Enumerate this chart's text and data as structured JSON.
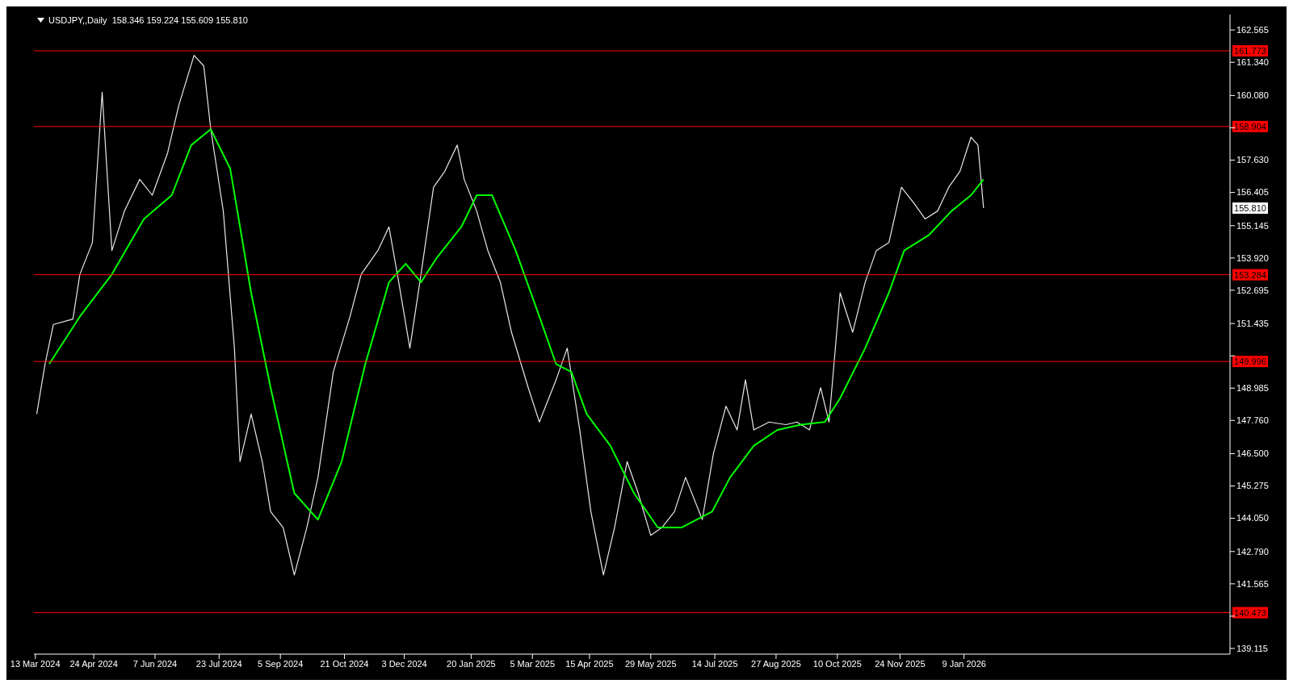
{
  "chart_data": {
    "type": "line",
    "title": "USDJPY,,Daily  158.346 159.224 155.609 155.810",
    "xlim": [
      "2024-03-12",
      "2026-07-19"
    ],
    "xticks": [
      {
        "value": "2024-03-13",
        "label": "13 Mar 2024"
      },
      {
        "value": "2024-04-24",
        "label": "24 Apr 2024"
      },
      {
        "value": "2024-06-07",
        "label": "7 Jun 2024"
      },
      {
        "value": "2024-07-23",
        "label": "23 Jul 2024"
      },
      {
        "value": "2024-09-05",
        "label": "5 Sep 2024"
      },
      {
        "value": "2024-10-21",
        "label": "21 Oct 2024"
      },
      {
        "value": "2024-12-03",
        "label": "3 Dec 2024"
      },
      {
        "value": "2025-01-20",
        "label": "20 Jan 2025"
      },
      {
        "value": "2025-03-05",
        "label": "5 Mar 2025"
      },
      {
        "value": "2025-04-15",
        "label": "15 Apr 2025"
      },
      {
        "value": "2025-05-29",
        "label": "29 May 2025"
      },
      {
        "value": "2025-07-14",
        "label": "14 Jul 2025"
      },
      {
        "value": "2025-08-27",
        "label": "27 Aug 2025"
      },
      {
        "value": "2025-10-10",
        "label": "10 Oct 2025"
      },
      {
        "value": "2025-11-24",
        "label": "24 Nov 2025"
      },
      {
        "value": "2026-01-09",
        "label": "9 Jan 2026"
      }
    ],
    "ylim": [
      138.9,
      163.15
    ],
    "yticks": [
      {
        "value": 139.115,
        "label": "139.115"
      },
      {
        "value": 140.34,
        "label": null
      },
      {
        "value": 141.565,
        "label": "141.565"
      },
      {
        "value": 142.79,
        "label": "142.790"
      },
      {
        "value": 144.05,
        "label": "144.050"
      },
      {
        "value": 145.275,
        "label": "145.275"
      },
      {
        "value": 146.5,
        "label": "146.500"
      },
      {
        "value": 147.76,
        "label": "147.760"
      },
      {
        "value": 148.985,
        "label": "148.985"
      },
      {
        "value": 150.21,
        "label": null
      },
      {
        "value": 151.435,
        "label": "151.435"
      },
      {
        "value": 152.695,
        "label": "152.695"
      },
      {
        "value": 153.92,
        "label": "153.920"
      },
      {
        "value": 155.145,
        "label": "155.145"
      },
      {
        "value": 156.405,
        "label": "156.405"
      },
      {
        "value": 157.63,
        "label": "157.630"
      },
      {
        "value": 158.855,
        "label": null
      },
      {
        "value": 160.08,
        "label": "160.080"
      },
      {
        "value": 161.34,
        "label": "161.340"
      },
      {
        "value": 162.565,
        "label": "162.565"
      }
    ],
    "series": [
      {
        "color": "#e8e8e8",
        "x": [
          "2024-03-14",
          "2024-03-20",
          "2024-03-26",
          "2024-04-09",
          "2024-04-14",
          "2024-04-23",
          "2024-04-30",
          "2024-05-07",
          "2024-05-16",
          "2024-05-27",
          "2024-06-05",
          "2024-06-16",
          "2024-06-24",
          "2024-07-05",
          "2024-07-12",
          "2024-07-17",
          "2024-07-26",
          "2024-08-03",
          "2024-08-07",
          "2024-08-15",
          "2024-08-23",
          "2024-08-29",
          "2024-09-07",
          "2024-09-15",
          "2024-09-24",
          "2024-10-02",
          "2024-10-13",
          "2024-10-25",
          "2024-11-02",
          "2024-11-14",
          "2024-11-22",
          "2024-11-29",
          "2024-12-07",
          "2024-12-15",
          "2024-12-24",
          "2025-01-01",
          "2025-01-10",
          "2025-01-15",
          "2025-01-24",
          "2025-02-01",
          "2025-02-10",
          "2025-02-18",
          "2025-03-02",
          "2025-03-10",
          "2025-03-22",
          "2025-03-30",
          "2025-04-08",
          "2025-04-16",
          "2025-04-25",
          "2025-05-03",
          "2025-05-12",
          "2025-05-20",
          "2025-05-29",
          "2025-06-06",
          "2025-06-15",
          "2025-06-23",
          "2025-07-05",
          "2025-07-13",
          "2025-07-22",
          "2025-07-30",
          "2025-08-05",
          "2025-08-11",
          "2025-08-22",
          "2025-09-03",
          "2025-09-11",
          "2025-09-20",
          "2025-09-28",
          "2025-10-04",
          "2025-10-12",
          "2025-10-21",
          "2025-10-30",
          "2025-11-07",
          "2025-11-16",
          "2025-11-25",
          "2025-12-04",
          "2025-12-12",
          "2025-12-21",
          "2025-12-29",
          "2026-01-06",
          "2026-01-14",
          "2026-01-19",
          "2026-01-23"
        ],
        "values": [
          148.0,
          149.9,
          151.4,
          151.6,
          153.3,
          154.5,
          160.2,
          154.2,
          155.7,
          156.9,
          156.3,
          157.9,
          159.7,
          161.6,
          161.2,
          158.8,
          155.7,
          150.5,
          146.2,
          148.0,
          146.2,
          144.3,
          143.7,
          141.9,
          143.7,
          145.6,
          149.6,
          151.7,
          153.3,
          154.2,
          155.1,
          153.0,
          150.5,
          153.3,
          156.6,
          157.2,
          158.2,
          156.9,
          155.7,
          154.2,
          153.0,
          151.1,
          149.0,
          147.7,
          149.3,
          150.5,
          147.4,
          144.3,
          141.9,
          143.7,
          146.2,
          145.0,
          143.4,
          143.7,
          144.3,
          145.6,
          144.0,
          146.5,
          148.3,
          147.4,
          149.3,
          147.4,
          147.7,
          147.6,
          147.7,
          147.4,
          149.0,
          147.7,
          152.6,
          151.1,
          153.0,
          154.2,
          154.5,
          156.6,
          156.0,
          155.4,
          155.7,
          156.6,
          157.2,
          158.5,
          158.2,
          155.81
        ]
      },
      {
        "color": "#00ff00",
        "x": [
          "2024-03-23",
          "2024-04-14",
          "2024-05-07",
          "2024-05-30",
          "2024-06-19",
          "2024-07-03",
          "2024-07-17",
          "2024-07-31",
          "2024-08-15",
          "2024-08-29",
          "2024-09-15",
          "2024-10-02",
          "2024-10-19",
          "2024-11-05",
          "2024-11-22",
          "2024-12-04",
          "2024-12-15",
          "2024-12-26",
          "2025-01-13",
          "2025-01-24",
          "2025-02-04",
          "2025-02-21",
          "2025-03-10",
          "2025-03-22",
          "2025-04-02",
          "2025-04-13",
          "2025-04-30",
          "2025-05-17",
          "2025-06-03",
          "2025-06-20",
          "2025-07-12",
          "2025-07-25",
          "2025-08-11",
          "2025-08-28",
          "2025-09-14",
          "2025-10-01",
          "2025-10-12",
          "2025-10-30",
          "2025-11-16",
          "2025-11-27",
          "2025-12-15",
          "2025-12-31",
          "2026-01-14",
          "2026-01-23"
        ],
        "values": [
          149.9,
          151.7,
          153.3,
          155.4,
          156.3,
          158.2,
          158.8,
          157.3,
          152.6,
          149.0,
          145.0,
          144.0,
          146.2,
          149.9,
          153.0,
          153.7,
          153.0,
          153.9,
          155.1,
          156.3,
          156.3,
          154.2,
          151.7,
          149.9,
          149.6,
          148.0,
          146.8,
          145.0,
          143.7,
          143.7,
          144.3,
          145.6,
          146.8,
          147.4,
          147.6,
          147.7,
          148.6,
          150.5,
          152.6,
          154.2,
          154.8,
          155.7,
          156.3,
          156.9
        ]
      }
    ],
    "ref_lines": [
      {
        "axis": "y",
        "value": 161.773,
        "label": "161.773",
        "color": "#ff0000"
      },
      {
        "axis": "y",
        "value": 158.904,
        "label": "158.904",
        "color": "#ff0000"
      },
      {
        "axis": "y",
        "value": 153.284,
        "label": "153.284",
        "color": "#ff0000"
      },
      {
        "axis": "y",
        "value": 149.996,
        "label": "149.996",
        "color": "#ff0000"
      },
      {
        "axis": "y",
        "value": 140.473,
        "label": "140.473",
        "color": "#ff0000"
      }
    ],
    "annotations": [
      "155.810"
    ]
  }
}
